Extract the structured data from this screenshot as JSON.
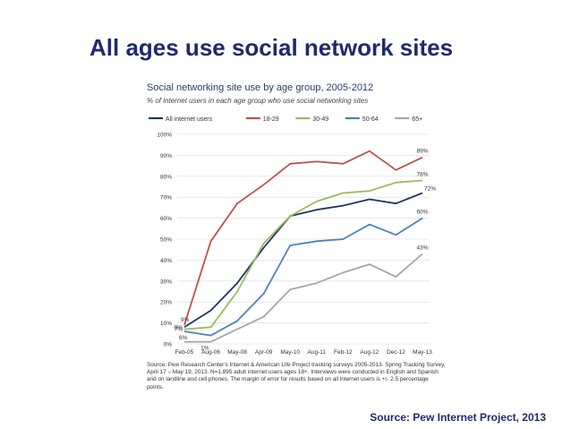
{
  "slide": {
    "title": "All ages use social network sites",
    "footer_source": "Source: Pew Internet Project, 2013"
  },
  "chart_data": {
    "type": "line",
    "title": "Social networking site use by age group, 2005-2012",
    "subtitle": "% of internet users in each age group who use social networking sites",
    "categories": [
      "Feb-05",
      "Aug-06",
      "May-08",
      "Apr-09",
      "May-10",
      "Aug-11",
      "Feb-12",
      "Aug-12",
      "Dec-12",
      "May-13"
    ],
    "y_ticks": [
      "0%",
      "10%",
      "20%",
      "30%",
      "40%",
      "50%",
      "60%",
      "70%",
      "80%",
      "90%",
      "100%"
    ],
    "ylim": [
      0,
      100
    ],
    "grid": true,
    "legend_position": "top",
    "series": [
      {
        "name": "All internet users",
        "color": "#1f3864",
        "values": [
          8,
          16,
          29,
          46,
          61,
          64,
          66,
          69,
          67,
          72
        ]
      },
      {
        "name": "18-29",
        "color": "#c0504d",
        "values": [
          9,
          49,
          67,
          76,
          86,
          87,
          86,
          92,
          83,
          89
        ]
      },
      {
        "name": "30-49",
        "color": "#9bbb59",
        "values": [
          7,
          8,
          25,
          48,
          61,
          68,
          72,
          73,
          77,
          78
        ]
      },
      {
        "name": "50-64",
        "color": "#4f81bd",
        "values": [
          6,
          4,
          11,
          24,
          47,
          49,
          50,
          57,
          52,
          60
        ]
      },
      {
        "name": "65+",
        "color": "#a6a6a6",
        "values": [
          1,
          1,
          7,
          13,
          26,
          29,
          34,
          38,
          32,
          43
        ]
      }
    ],
    "annotations": [
      {
        "series": 1,
        "index": 0,
        "text": "9%"
      },
      {
        "series": 0,
        "index": 0,
        "text": "8%"
      },
      {
        "series": 2,
        "index": 0,
        "text": "7%"
      },
      {
        "series": 3,
        "index": 0,
        "text": "6%"
      },
      {
        "series": 4,
        "index": 1,
        "text": "1%"
      },
      {
        "series": 1,
        "index": 9,
        "text": "89%"
      },
      {
        "series": 2,
        "index": 9,
        "text": "78%"
      },
      {
        "series": 0,
        "index": 9,
        "text": "72%"
      },
      {
        "series": 3,
        "index": 9,
        "text": "60%"
      },
      {
        "series": 4,
        "index": 9,
        "text": "43%"
      }
    ],
    "source_note": "Source: Pew Research Center's Internet & American Life Project tracking surveys 2005-2013. Spring Tracking Survey, April 17 – May 19, 2013. N=1,895 adult internet users ages 18+. Interviews were conducted in English and Spanish and on landline and cell phones. The margin of error for results based on all internet users is +/- 2.5 percentage points."
  }
}
